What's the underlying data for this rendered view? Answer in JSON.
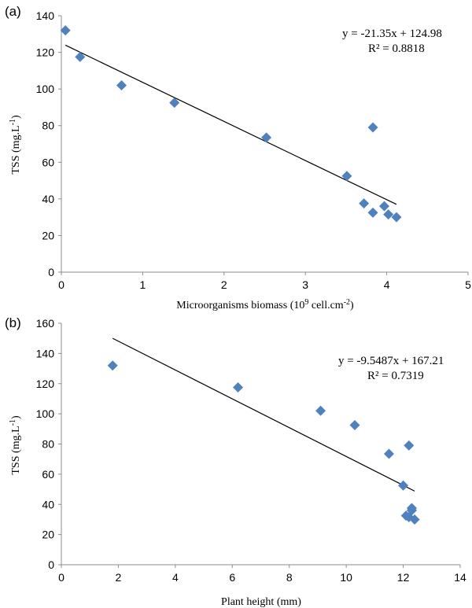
{
  "chart_data": [
    {
      "type": "scatter",
      "panel_label": "(a)",
      "xlabel_main": "Microorganisms biomass (10",
      "xlabel_sup1": "9",
      "xlabel_mid": " cell.cm",
      "xlabel_sup2": "-2",
      "xlabel_end": ")",
      "ylabel_main": "TSS (mg.L",
      "ylabel_sup": "-1",
      "ylabel_end": ")",
      "xlim": [
        0,
        5
      ],
      "ylim": [
        0,
        140
      ],
      "xticks": [
        0,
        1,
        2,
        3,
        4,
        5
      ],
      "yticks": [
        0,
        20,
        40,
        60,
        80,
        100,
        120,
        140
      ],
      "equation": "y = -21.35x + 124.98",
      "r2_label": "R² = 0.8818",
      "trendline": {
        "slope": -21.35,
        "intercept": 124.98,
        "x_range": [
          0.05,
          4.12
        ]
      },
      "marker_color": "#4f81bd",
      "points": [
        {
          "x": 0.05,
          "y": 132
        },
        {
          "x": 0.23,
          "y": 117.5
        },
        {
          "x": 0.74,
          "y": 102
        },
        {
          "x": 1.39,
          "y": 92.5
        },
        {
          "x": 2.52,
          "y": 73.5
        },
        {
          "x": 3.51,
          "y": 52.5
        },
        {
          "x": 3.72,
          "y": 37.5
        },
        {
          "x": 3.83,
          "y": 79
        },
        {
          "x": 3.83,
          "y": 32.5
        },
        {
          "x": 3.97,
          "y": 36
        },
        {
          "x": 4.02,
          "y": 31.5
        },
        {
          "x": 4.12,
          "y": 30
        }
      ]
    },
    {
      "type": "scatter",
      "panel_label": "(b)",
      "xlabel_main": "Plant height (mm)",
      "ylabel_main": "TSS (mg.L",
      "ylabel_sup": "-1",
      "ylabel_end": ")",
      "xlim": [
        0,
        14
      ],
      "ylim": [
        0,
        160
      ],
      "xticks": [
        0,
        2,
        4,
        6,
        8,
        10,
        12,
        14
      ],
      "yticks": [
        0,
        20,
        40,
        60,
        80,
        100,
        120,
        140,
        160
      ],
      "equation": "y = -9.5487x + 167.21",
      "r2_label": "R² = 0.7319",
      "trendline": {
        "slope": -9.5487,
        "intercept": 167.21,
        "x_range": [
          1.8,
          12.4
        ]
      },
      "marker_color": "#4f81bd",
      "points": [
        {
          "x": 1.8,
          "y": 132
        },
        {
          "x": 6.2,
          "y": 117.5
        },
        {
          "x": 9.1,
          "y": 102
        },
        {
          "x": 10.3,
          "y": 92.5
        },
        {
          "x": 11.5,
          "y": 73.5
        },
        {
          "x": 12.0,
          "y": 52.5
        },
        {
          "x": 12.1,
          "y": 32.5
        },
        {
          "x": 12.2,
          "y": 79
        },
        {
          "x": 12.2,
          "y": 31.5
        },
        {
          "x": 12.3,
          "y": 36
        },
        {
          "x": 12.3,
          "y": 37.5
        },
        {
          "x": 12.4,
          "y": 30
        }
      ]
    }
  ]
}
